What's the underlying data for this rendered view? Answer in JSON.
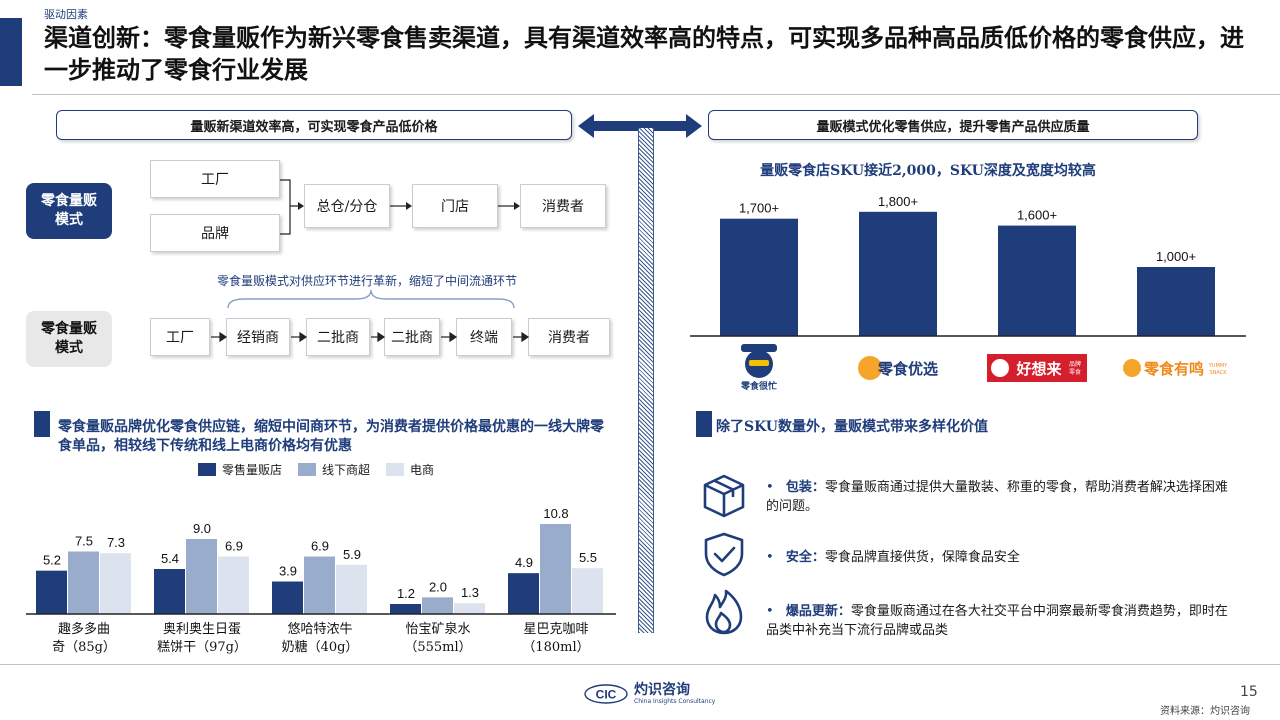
{
  "header": {
    "section_tag": "驱动因素",
    "headline": "渠道创新：零食量贩作为新兴零食售卖渠道，具有渠道效率高的特点，可实现多品种高品质低价格的零食供应，进一步推动了零食行业发展"
  },
  "pills": {
    "left": "量贩新渠道效率高，可实现零食产品低价格",
    "right": "量贩模式优化零售供应，提升零售产品供应质量"
  },
  "flow_new": {
    "label": "零食量贩模式",
    "sources": [
      "工厂",
      "品牌"
    ],
    "steps": [
      "总仓/分仓",
      "门店",
      "消费者"
    ]
  },
  "flow_note": "零食量贩模式对供应环节进行革新，缩短了中间流通环节",
  "flow_trad": {
    "label": "零食量贩模式",
    "steps": [
      "工厂",
      "经销商",
      "二批商",
      "二批商",
      "终端",
      "消费者"
    ]
  },
  "price_section": {
    "title": "零食量贩品牌优化零食供应链，缩短中间商环节，为消费者提供价格最优惠的一线大牌零食单品，相较线下传统和线上电商价格均有优惠"
  },
  "price_chart": {
    "chart_data": {
      "type": "bar",
      "categories": [
        "趣多多曲奇（85g）",
        "奥利奥生日蛋糕饼干（97g）",
        "悠哈特浓牛奶糖（40g）",
        "怡宝矿泉水（555ml）",
        "星巴克咖啡（180ml）"
      ],
      "category_lines": [
        [
          "趣多多曲",
          "奇（85g）"
        ],
        [
          "奥利奥生日蛋",
          "糕饼干（97g）"
        ],
        [
          "悠哈特浓牛",
          "奶糖（40g）"
        ],
        [
          "怡宝矿泉水",
          "（555ml）"
        ],
        [
          "星巴克咖啡",
          "（180ml）"
        ]
      ],
      "series": [
        {
          "name": "零售量贩店",
          "values": [
            5.2,
            5.4,
            3.9,
            1.2,
            4.9
          ],
          "color": "#1f3d7a"
        },
        {
          "name": "线下商超",
          "values": [
            7.5,
            9.0,
            6.9,
            2.0,
            10.8
          ],
          "color": "#9aaccc"
        },
        {
          "name": "电商",
          "values": [
            7.3,
            6.9,
            5.9,
            1.3,
            5.5
          ],
          "color": "#dde3ee"
        }
      ],
      "labels": [
        [
          "5.2",
          "5.4",
          "3.9",
          "1.2",
          "4.9"
        ],
        [
          "7.5",
          "9.0",
          "6.9",
          "2.0",
          "10.8"
        ],
        [
          "7.3",
          "6.9",
          "5.9",
          "1.3",
          "5.5"
        ]
      ],
      "ylim": [
        0,
        12
      ]
    }
  },
  "sku_chart": {
    "title": "量贩零食店SKU接近2,000，SKU深度及宽度均较高",
    "chart_data": {
      "type": "bar",
      "categories": [
        "零食很忙",
        "零食优选",
        "好想来",
        "零食有鸣"
      ],
      "values": [
        1700,
        1800,
        1600,
        1000
      ],
      "labels": [
        "1,700+",
        "1,800+",
        "1,600+",
        "1,000+"
      ],
      "ylim": [
        0,
        2000
      ],
      "color": "#1f3d7a"
    },
    "logos": [
      {
        "text": "零食很忙"
      },
      {
        "text": "零食优选"
      },
      {
        "text": "好想来",
        "sub1": "品牌",
        "sub2": "零食"
      },
      {
        "text": "零食有鸣",
        "sub1": "YUMMY",
        "sub2": "SNACK"
      }
    ]
  },
  "benefits": {
    "title": "除了SKU数量外，量贩模式带来多样化价值",
    "items": [
      {
        "icon": "package-icon",
        "bold": "包装：",
        "text": "零食量贩商通过提供大量散装、称重的零食，帮助消费者解决选择困难的问题。"
      },
      {
        "icon": "shield-check-icon",
        "bold": "安全：",
        "text": "零食品牌直接供货，保障食品安全"
      },
      {
        "icon": "flame-icon",
        "bold": "爆品更新：",
        "text": "零食量贩商通过在各大社交平台中洞察最新零食消费趋势，即时在品类中补充当下流行品牌或品类"
      }
    ]
  },
  "footer": {
    "logo_main": "灼识咨询",
    "logo_sub": "China Insights Consultancy",
    "logo_mark": "CIC",
    "page_number": "15",
    "source": "资料来源：灼识咨询"
  },
  "colors": {
    "navy": "#1f3d7a",
    "mid": "#9aaccc",
    "light": "#dde3ee"
  }
}
